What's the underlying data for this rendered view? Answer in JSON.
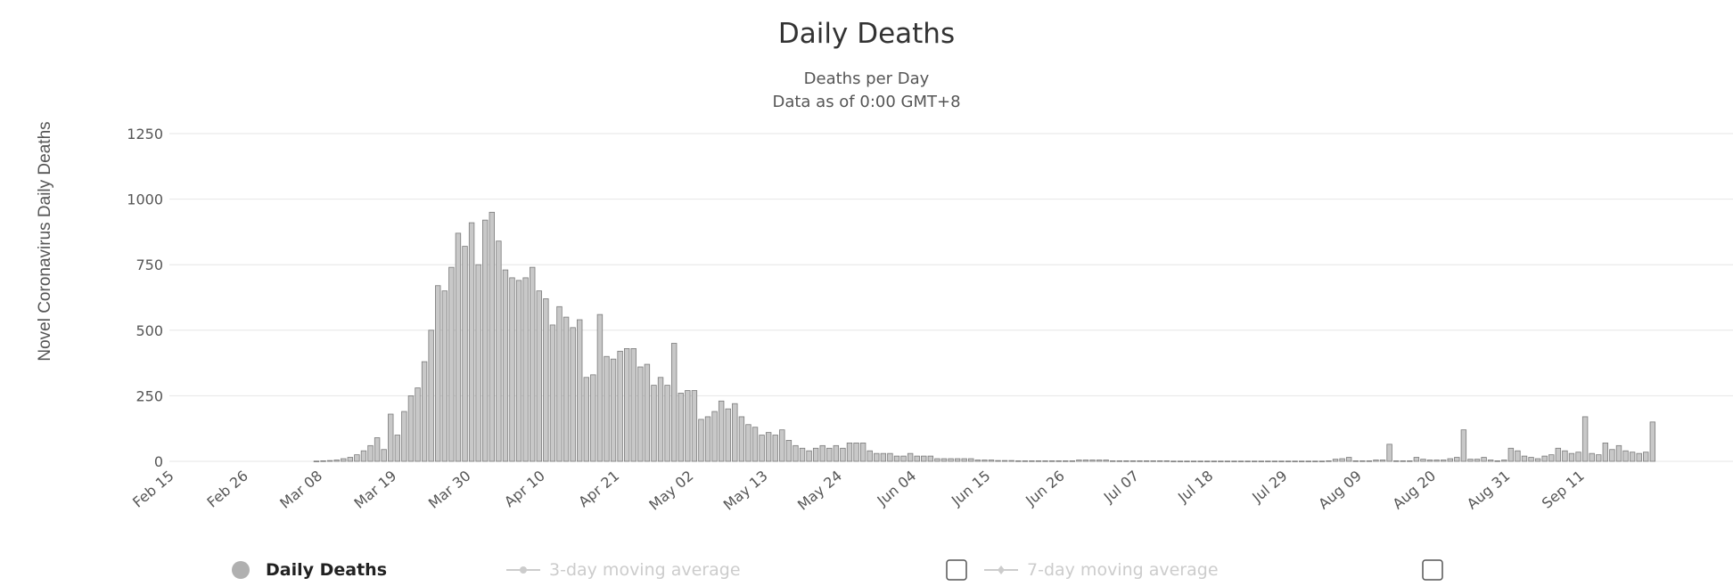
{
  "chart_data": {
    "type": "bar",
    "title": "Daily Deaths",
    "subtitle_lines": [
      "Deaths per Day",
      "Data as of 0:00 GMT+8"
    ],
    "ylabel": "Novel Coronavirus Daily Deaths",
    "xlabel": "",
    "ylim": [
      0,
      1250
    ],
    "yticks": [
      0,
      250,
      500,
      750,
      1000,
      1250
    ],
    "grid": true,
    "start_date": "2020-02-15",
    "x_tick_labels": [
      "Feb 15",
      "Feb 26",
      "Mar 08",
      "Mar 19",
      "Mar 30",
      "Apr 10",
      "Apr 21",
      "May 02",
      "May 13",
      "May 24",
      "Jun 04",
      "Jun 15",
      "Jun 26",
      "Jul 07",
      "Jul 18",
      "Jul 29",
      "Aug 09",
      "Aug 20",
      "Aug 31",
      "Sep 11"
    ],
    "series": [
      {
        "name": "Daily Deaths",
        "color": "#c8c8c8",
        "values": [
          0,
          0,
          0,
          0,
          0,
          0,
          0,
          0,
          0,
          0,
          0,
          0,
          0,
          0,
          0,
          0,
          0,
          0,
          0,
          0,
          0,
          1,
          2,
          3,
          5,
          10,
          15,
          25,
          40,
          60,
          90,
          45,
          180,
          100,
          190,
          250,
          280,
          380,
          500,
          670,
          650,
          740,
          870,
          820,
          910,
          750,
          920,
          950,
          840,
          730,
          700,
          690,
          700,
          740,
          650,
          620,
          520,
          590,
          550,
          510,
          540,
          320,
          330,
          560,
          400,
          390,
          420,
          430,
          430,
          360,
          370,
          290,
          320,
          290,
          450,
          260,
          270,
          270,
          160,
          170,
          190,
          230,
          200,
          220,
          170,
          140,
          130,
          100,
          110,
          100,
          120,
          80,
          60,
          50,
          40,
          50,
          60,
          50,
          60,
          50,
          70,
          70,
          70,
          40,
          30,
          30,
          30,
          20,
          20,
          30,
          20,
          20,
          20,
          10,
          10,
          10,
          10,
          10,
          10,
          5,
          5,
          5,
          3,
          3,
          3,
          2,
          2,
          2,
          2,
          2,
          2,
          2,
          2,
          2,
          5,
          5,
          5,
          5,
          5,
          2,
          2,
          2,
          2,
          2,
          2,
          2,
          2,
          2,
          1,
          1,
          1,
          1,
          1,
          1,
          1,
          1,
          1,
          1,
          1,
          1,
          1,
          1,
          1,
          1,
          1,
          1,
          1,
          1,
          1,
          1,
          1,
          2,
          8,
          10,
          15,
          2,
          2,
          2,
          5,
          5,
          65,
          2,
          2,
          2,
          15,
          8,
          5,
          5,
          5,
          10,
          15,
          120,
          8,
          8,
          15,
          5,
          2,
          5,
          50,
          40,
          20,
          15,
          10,
          20,
          25,
          50,
          40,
          30,
          35,
          170,
          30,
          25,
          70,
          45,
          60,
          40,
          35,
          30,
          35,
          150
        ]
      }
    ],
    "legend": [
      {
        "label": "Daily Deaths",
        "active": true,
        "color": "#b0b0b0"
      },
      {
        "label": "3-day moving average",
        "active": false,
        "color": "#cccccc"
      },
      {
        "label": "7-day moving average",
        "active": false,
        "color": "#cccccc"
      }
    ],
    "legend_placement": "bottom"
  }
}
